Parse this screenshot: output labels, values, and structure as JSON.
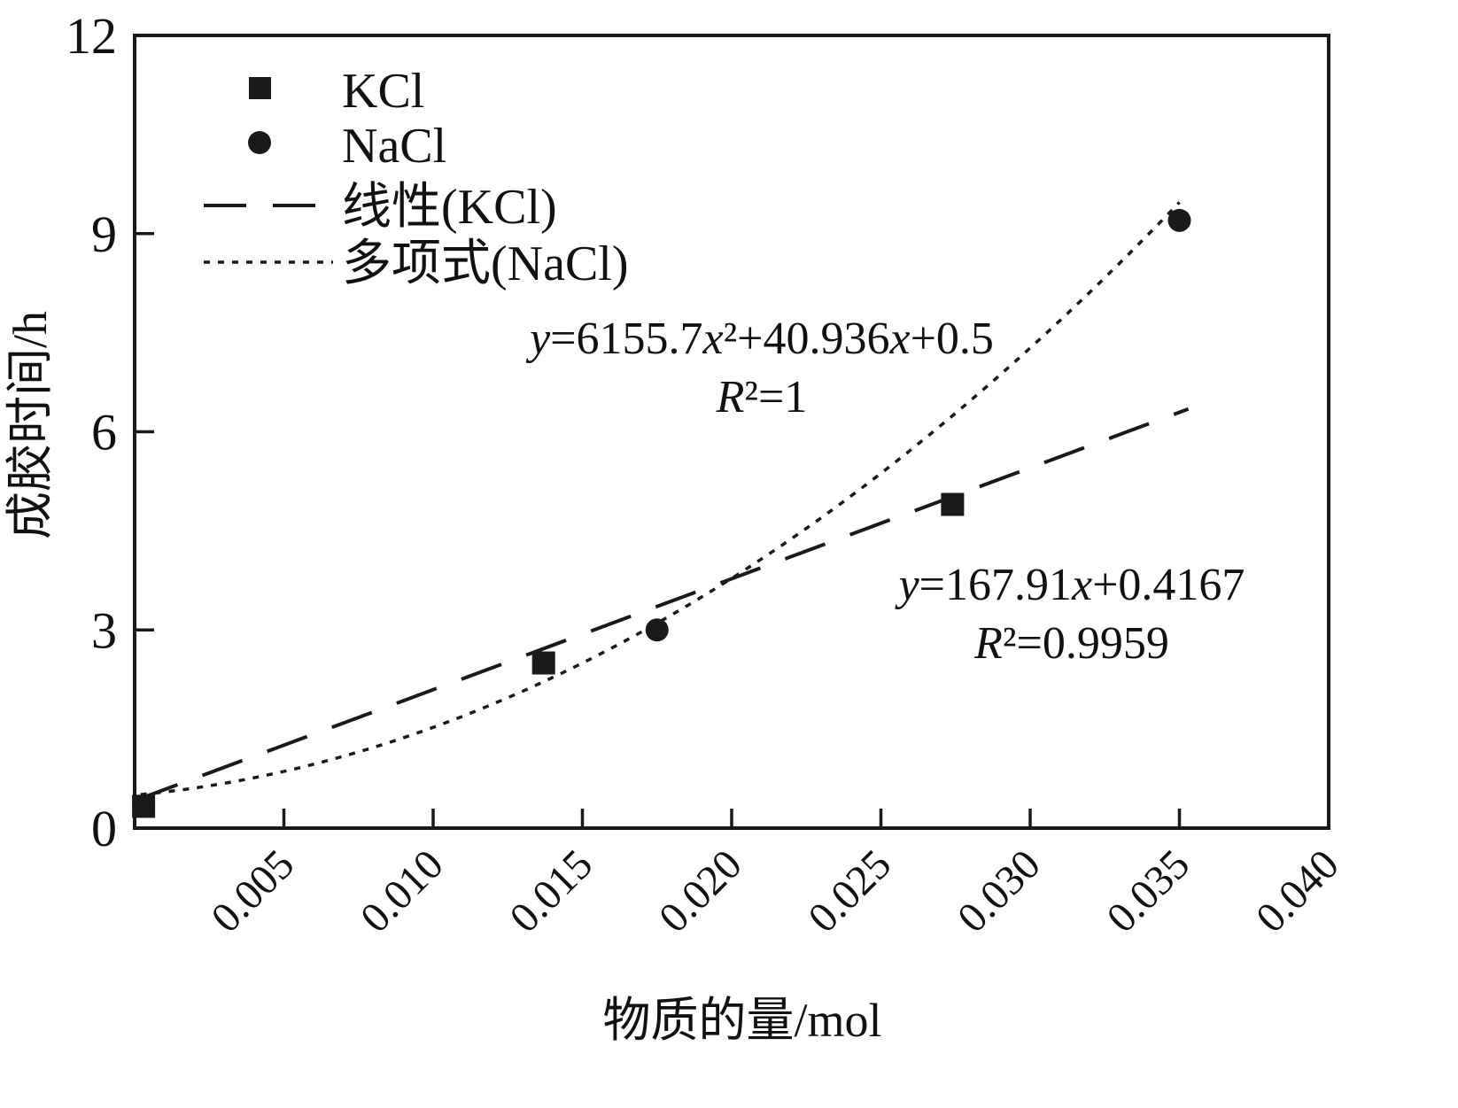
{
  "chart_data": {
    "type": "scatter",
    "title": "",
    "xlabel": "物质的量/mol",
    "ylabel": "成胶时间/h",
    "xlim": [
      0,
      0.04
    ],
    "ylim": [
      0,
      12
    ],
    "grid": false,
    "legend_position": "top-left",
    "ink_color": "#1a1a1a",
    "x_ticks": [
      {
        "v": 0.005,
        "label": "0.005"
      },
      {
        "v": 0.01,
        "label": "0.010"
      },
      {
        "v": 0.015,
        "label": "0.015"
      },
      {
        "v": 0.02,
        "label": "0.020"
      },
      {
        "v": 0.025,
        "label": "0.025"
      },
      {
        "v": 0.03,
        "label": "0.030"
      },
      {
        "v": 0.035,
        "label": "0.035"
      },
      {
        "v": 0.04,
        "label": "0.040"
      }
    ],
    "y_ticks": [
      {
        "v": 0,
        "label": "0"
      },
      {
        "v": 3,
        "label": "3"
      },
      {
        "v": 6,
        "label": "6"
      },
      {
        "v": 9,
        "label": "9"
      },
      {
        "v": 12,
        "label": "12"
      }
    ],
    "series": [
      {
        "name": "KCl",
        "marker": "square",
        "color": "#1a1a1a",
        "points": [
          [
            0.0003,
            0.33
          ],
          [
            0.0137,
            2.5
          ],
          [
            0.0274,
            4.9
          ]
        ]
      },
      {
        "name": "NaCl",
        "marker": "circle",
        "color": "#1a1a1a",
        "points": [
          [
            0.0003,
            0.33
          ],
          [
            0.0175,
            3.0
          ],
          [
            0.035,
            9.2
          ]
        ]
      }
    ],
    "trendlines": [
      {
        "name": "线性(KCl)",
        "for": "KCl",
        "type": "linear",
        "coefficients": [
          167.91,
          0.4167
        ],
        "dash_style": "long-dash",
        "x_range": [
          0.0001,
          0.0353
        ]
      },
      {
        "name": "多项式(NaCl)",
        "for": "NaCl",
        "type": "quadratic",
        "coefficients": [
          6155.7,
          40.936,
          0.5
        ],
        "dash_style": "dot",
        "x_range": [
          0.0002,
          0.035
        ]
      }
    ],
    "annotations": [
      {
        "lines": [
          "y=6155.7x²+40.936x+0.5",
          "R²=1"
        ]
      },
      {
        "lines": [
          "y=167.91x+0.4167",
          "R²=0.9959"
        ]
      }
    ]
  }
}
